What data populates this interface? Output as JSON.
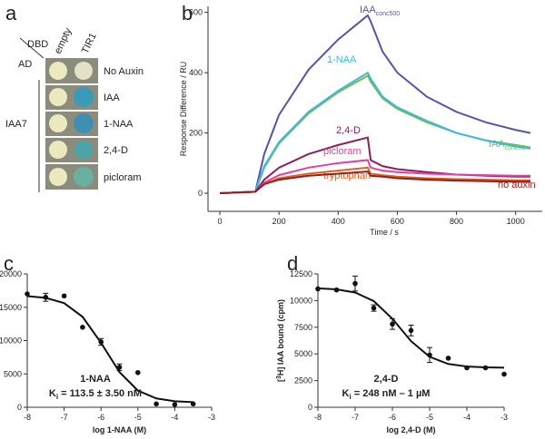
{
  "panel_a": {
    "panel": "a",
    "col_header": "DBD",
    "row_header": "AD",
    "columns": [
      "empty",
      "TIR1"
    ],
    "rows": [
      "No Auxin",
      "IAA",
      "1-NAA",
      "2,4-D",
      "picloram"
    ],
    "group": "IAA7"
  },
  "chart_data": [
    {
      "type": "line",
      "panel": "b",
      "xlabel": "Time / s",
      "ylabel": "Response Difference / RU",
      "x": [
        0,
        120,
        150,
        200,
        300,
        400,
        500,
        510,
        550,
        600,
        700,
        800,
        900,
        1000,
        1050
      ],
      "series": [
        {
          "name": "IAA",
          "name_sub": "conc500",
          "color": "#5555a8",
          "values": [
            0,
            5,
            130,
            260,
            410,
            510,
            590,
            570,
            470,
            400,
            320,
            270,
            235,
            210,
            200
          ]
        },
        {
          "name": "IAA",
          "name_sub": "conc50",
          "color": "#72bf44",
          "values": [
            0,
            5,
            85,
            165,
            265,
            335,
            390,
            370,
            315,
            280,
            235,
            200,
            175,
            160,
            152
          ]
        },
        {
          "name": "1-NAA",
          "color": "#3fb8e2",
          "values": [
            0,
            5,
            90,
            170,
            270,
            340,
            400,
            380,
            320,
            285,
            240,
            200,
            175,
            155,
            148
          ]
        },
        {
          "name": "2,4-D",
          "color": "#8a2060",
          "values": [
            0,
            5,
            45,
            85,
            130,
            160,
            185,
            110,
            90,
            80,
            70,
            62,
            58,
            55,
            55
          ]
        },
        {
          "name": "picloram",
          "color": "#e040a0",
          "values": [
            0,
            5,
            35,
            60,
            85,
            100,
            110,
            85,
            75,
            70,
            65,
            62,
            60,
            58,
            58
          ]
        },
        {
          "name": "tryptophan",
          "color": "#e06020",
          "values": [
            0,
            5,
            30,
            50,
            65,
            75,
            85,
            65,
            60,
            55,
            50,
            47,
            45,
            43,
            43
          ]
        },
        {
          "name": "no auxin",
          "color": "#902020",
          "values": [
            0,
            5,
            30,
            45,
            58,
            65,
            72,
            58,
            55,
            50,
            45,
            42,
            40,
            38,
            38
          ]
        }
      ],
      "xlim": [
        -40,
        1090
      ],
      "xticks": [
        0,
        200,
        400,
        600,
        800,
        1000
      ],
      "ylim": [
        -60,
        620
      ],
      "yticks": [
        0,
        200,
        400,
        600
      ]
    },
    {
      "type": "scatter",
      "panel": "c",
      "xlabel": "log 1-NAA (M)",
      "ylabel_pre": "[",
      "ylabel_sup": "3",
      "ylabel_post": "H] IAA bound (cpm)",
      "annotation": "1-NAA",
      "ki_label": "K",
      "ki_sub": "i",
      "ki_value": " = 113.5 ± 3.50 nM",
      "points": {
        "x": [
          -8,
          -7.5,
          -7,
          -6.5,
          -6,
          -5.5,
          -5,
          -4.5,
          -4,
          -3.5
        ],
        "values": [
          17000,
          16500,
          16700,
          12000,
          9800,
          6000,
          5200,
          500,
          400,
          500
        ],
        "errors": [
          null,
          600,
          null,
          null,
          500,
          500,
          null,
          null,
          null,
          null
        ]
      },
      "fit": {
        "x": [
          -8,
          -7.5,
          -7,
          -6.5,
          -6,
          -5.5,
          -5,
          -4.5,
          -4,
          -3.5
        ],
        "values": [
          16670,
          16410,
          15620,
          13570,
          9670,
          5280,
          2500,
          1320,
          900,
          760
        ]
      },
      "xlim": [
        -8,
        -3
      ],
      "xticks": [
        -8,
        -7,
        -6,
        -5,
        -4,
        -3
      ],
      "ylim": [
        0,
        20000
      ],
      "yticks": [
        0,
        5000,
        10000,
        15000,
        20000
      ]
    },
    {
      "type": "scatter",
      "panel": "d",
      "xlabel": "log 2,4-D (M)",
      "ylabel_pre": "[",
      "ylabel_sup": "3",
      "ylabel_post": "H] IAA bound (cpm)",
      "annotation": "2,4-D",
      "ki_label": "K",
      "ki_sub": "i",
      "ki_value": " = 248 nM – 1 µM",
      "points": {
        "x": [
          -8,
          -7.5,
          -7,
          -6.5,
          -6,
          -5.5,
          -5,
          -4.5,
          -4,
          -3.5,
          -3
        ],
        "values": [
          11100,
          11000,
          11600,
          9300,
          7800,
          7200,
          4900,
          4600,
          3700,
          3700,
          3100
        ],
        "errors": [
          null,
          null,
          700,
          300,
          500,
          500,
          700,
          null,
          null,
          null,
          null
        ]
      },
      "fit": {
        "x": [
          -8,
          -7.5,
          -7,
          -6.5,
          -6,
          -5.5,
          -5,
          -4.5,
          -4,
          -3.5,
          -3
        ],
        "values": [
          11150,
          11050,
          10760,
          9950,
          8300,
          6200,
          4730,
          4060,
          3820,
          3740,
          3710
        ]
      },
      "xlim": [
        -8,
        -3
      ],
      "xticks": [
        -8,
        -7,
        -6,
        -5,
        -4,
        -3
      ],
      "ylim": [
        0,
        12500
      ],
      "yticks": [
        0,
        2500,
        5000,
        7500,
        10000,
        12500
      ]
    }
  ]
}
